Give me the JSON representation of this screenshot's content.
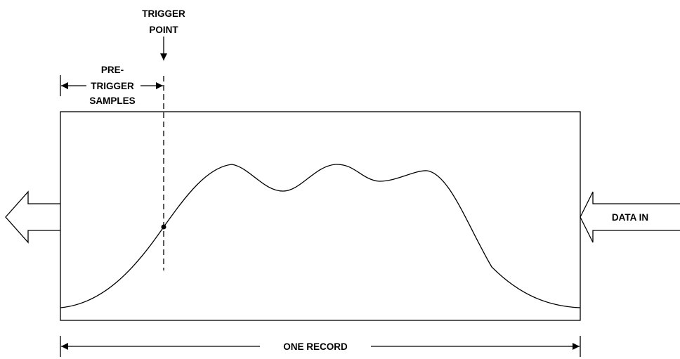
{
  "labels": {
    "trigger_point_line1": "TRIGGER",
    "trigger_point_line2": "POINT",
    "pretrigger_line1": "PRE-",
    "pretrigger_line2": "TRIGGER",
    "pretrigger_line3": "SAMPLES",
    "data_in": "DATA IN",
    "one_record": "ONE RECORD"
  }
}
